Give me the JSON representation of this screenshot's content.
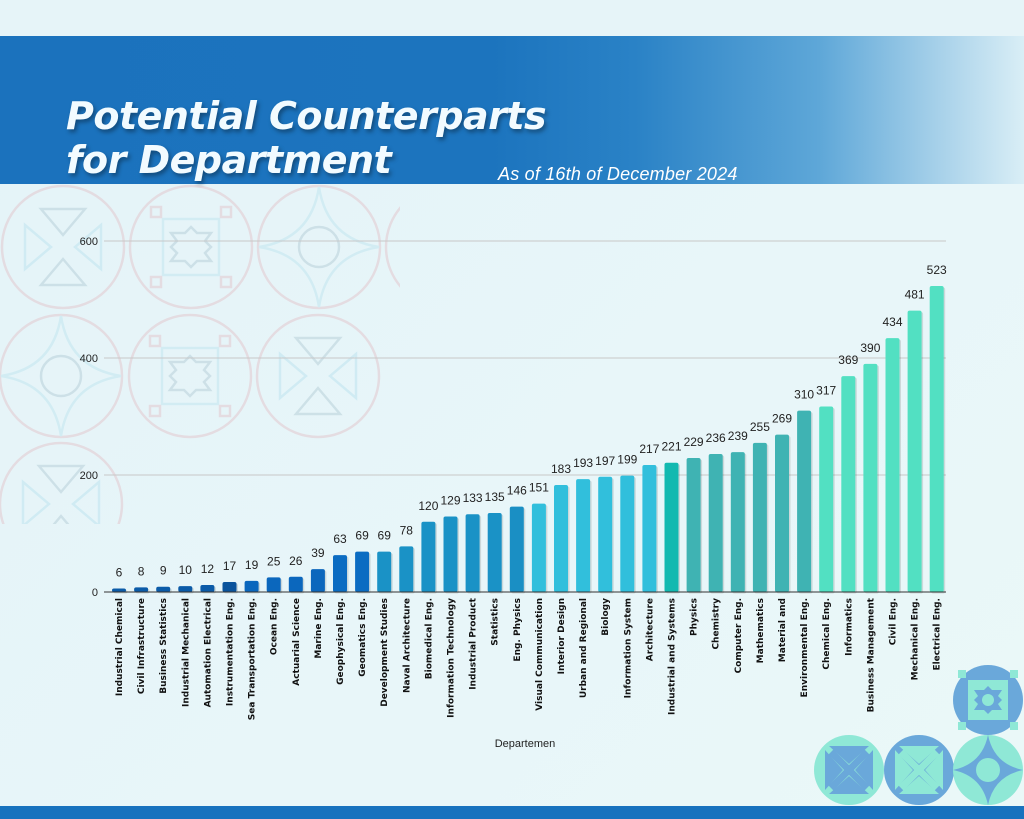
{
  "header": {
    "title_line1": "Potential Counterparts",
    "title_line2": "for Department",
    "subtitle": "As of 16th of December 2024"
  },
  "decor": {
    "background_pattern": "ornament-circle-pattern",
    "corner_icons": [
      "star-square-medallion-icon",
      "x-petal-medallion-icon",
      "x-petal-medallion-icon",
      "four-point-star-medallion-icon"
    ]
  },
  "colors": {
    "header_blue": "#1b72bd",
    "bottom_bar": "#1772be",
    "gridline": "#c8c8c8",
    "medallion_blue": "#6aa8da",
    "medallion_mint": "#8fe8d6"
  },
  "chart_data": {
    "type": "bar",
    "title": "Potential Counterparts for Department",
    "subtitle": "As of 16th of December 2024",
    "xlabel": "Departemen",
    "ylabel": "",
    "ylim": [
      0,
      600
    ],
    "yticks": [
      0,
      200,
      400,
      600
    ],
    "grid": true,
    "legend": "none",
    "categories": [
      "Industrial Chemical",
      "Civil Infrastructure",
      "Business Statistics",
      "Industrial Mechanical",
      "Automation Electrical",
      "Instrumentation Eng.",
      "Sea Transportation Eng.",
      "Ocean Eng.",
      "Actuarial Science",
      "Marine Eng.",
      "Geophysical Eng.",
      "Geomatics Eng.",
      "Development Studies",
      "Naval Architecture",
      "Biomedical Eng.",
      "Information Technology",
      "Industrial Product",
      "Statistics",
      "Eng. Physics",
      "Visual Communication",
      "Interior Design",
      "Urban and Regional",
      "Biology",
      "Information System",
      "Architecture",
      "Industrial and Systems",
      "Physics",
      "Chemistry",
      "Computer Eng.",
      "Mathematics",
      "Material and",
      "Environmental Eng.",
      "Chemical Eng.",
      "Informatics",
      "Business Management",
      "Civil Eng.",
      "Mechanical Eng.",
      "Electrical Eng."
    ],
    "values": [
      6,
      8,
      9,
      10,
      12,
      17,
      19,
      25,
      26,
      39,
      63,
      69,
      69,
      78,
      120,
      129,
      133,
      135,
      146,
      151,
      183,
      193,
      197,
      199,
      217,
      221,
      229,
      236,
      239,
      255,
      269,
      310,
      317,
      369,
      390,
      434,
      481,
      523
    ],
    "bar_colors": [
      "#0b5ba8",
      "#0b5ba8",
      "#0b5ba8",
      "#0b5ba8",
      "#0b5ba8",
      "#0a539c",
      "#0b67bd",
      "#0b67bd",
      "#0b67bd",
      "#0b67bd",
      "#0b6cc2",
      "#0b6cc2",
      "#1a92c6",
      "#1a92c6",
      "#1a92c6",
      "#1a92c6",
      "#1a92c6",
      "#1a92c6",
      "#1a8fc4",
      "#31bfdc",
      "#31bfdc",
      "#31bfdc",
      "#31bfdc",
      "#31bfdc",
      "#31bfdc",
      "#12b9b0",
      "#3fb3b3",
      "#3fb3b3",
      "#3fb3b3",
      "#3fb3b3",
      "#3fb3b3",
      "#3fb3b3",
      "#52e0c2",
      "#52e0c2",
      "#52e0c2",
      "#52e0c2",
      "#52e0c2",
      "#52e0c2"
    ]
  }
}
